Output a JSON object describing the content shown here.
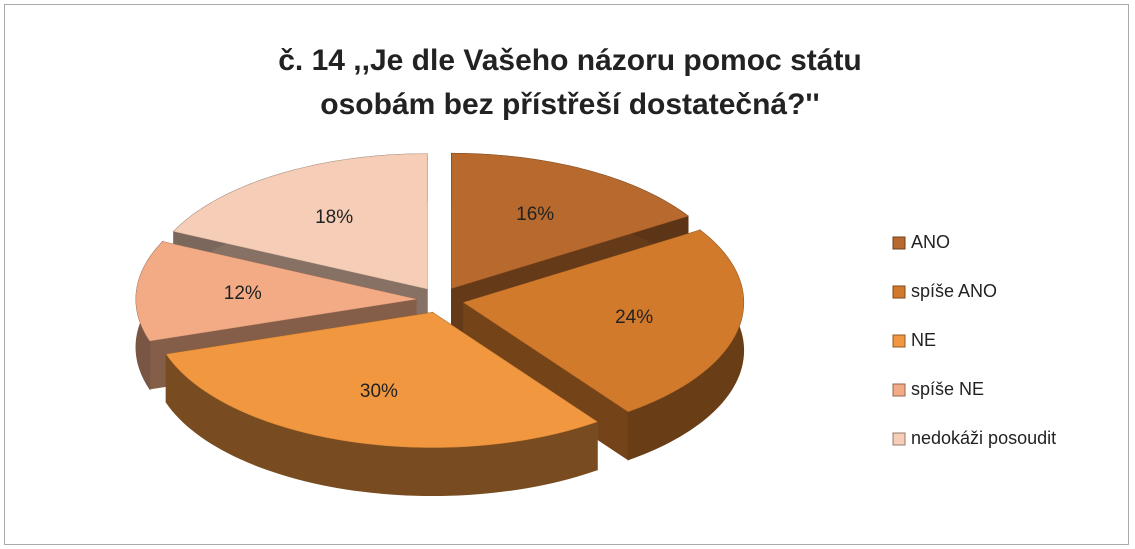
{
  "chart_data": {
    "type": "pie3d",
    "title": "č. 14 ,,Je dle Vašeho názoru pomoc státu osobám bez přístřeší dostatečná?''",
    "categories": [
      "ANO",
      "spíše ANO",
      "NE",
      "spíše NE",
      "nedokáži posoudit"
    ],
    "values": [
      16,
      24,
      30,
      12,
      18
    ],
    "value_labels": [
      "16%",
      "24%",
      "30%",
      "12%",
      "18%"
    ],
    "colors": [
      "#b8692d",
      "#d27a2c",
      "#f0973f",
      "#f2ab85",
      "#f6cdb6"
    ],
    "legend": "right"
  }
}
